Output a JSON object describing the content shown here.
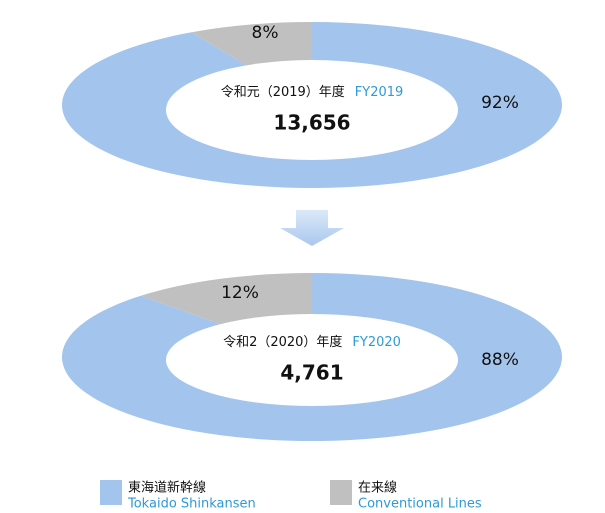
{
  "chart_data": [
    {
      "type": "pie",
      "title": "令和元（2019）年度",
      "title_en": "FY2019",
      "total": {
        "value": 13656,
        "label": "13,656"
      },
      "values": [
        92,
        8
      ],
      "value_labels": [
        "92%",
        "8%"
      ],
      "colors": [
        "#a3c4ec",
        "#c0c0c0"
      ]
    },
    {
      "type": "pie",
      "title": "令和2（2020）年度",
      "title_en": "FY2020",
      "total": {
        "value": 4761,
        "label": "4,761"
      },
      "values": [
        88,
        12
      ],
      "value_labels": [
        "88%",
        "12%"
      ],
      "colors": [
        "#a3c4ec",
        "#c0c0c0"
      ]
    }
  ],
  "legend": [
    {
      "name": "東海道新幹線",
      "name_en": "Tokaido Shinkansen",
      "color": "#a3c4ec"
    },
    {
      "name": "在来線",
      "name_en": "Conventional Lines",
      "color": "#c0c0c0"
    }
  ]
}
